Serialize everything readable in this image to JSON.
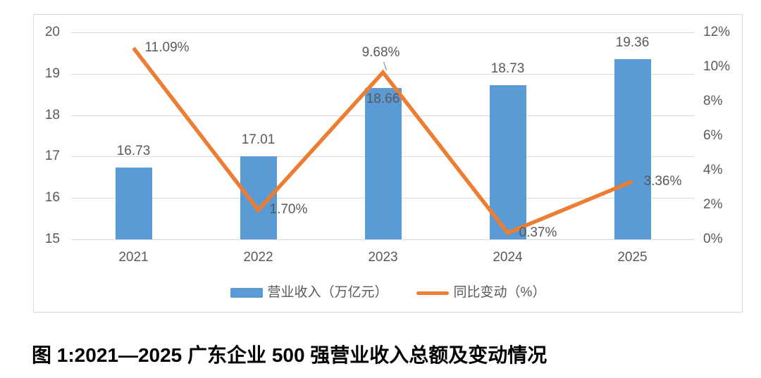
{
  "caption": {
    "text": "图 1:2021—2025 广东企业 500 强营业收入总额及变动情况"
  },
  "colors": {
    "bar": "#5B9BD5",
    "line": "#ED7D31",
    "grid": "#D9D9D9",
    "axis_text": "#595959",
    "label_text": "#595959",
    "leader_line": "#A6A6A6",
    "frame_border": "#D9D9D9",
    "caption_text": "#000000"
  },
  "chart_data": {
    "type": "combo_bar_line",
    "categories": [
      "2021",
      "2022",
      "2023",
      "2024",
      "2025"
    ],
    "series": [
      {
        "name": "营业收入（万亿元）",
        "type": "bar",
        "color": "#5B9BD5",
        "axis": "left",
        "values": [
          16.73,
          17.01,
          18.66,
          18.73,
          19.36
        ],
        "labels": [
          "16.73",
          "17.01",
          "18.66",
          "18.73",
          "19.36"
        ],
        "label_positions": [
          "above",
          "above",
          "inside",
          "above",
          "above"
        ]
      },
      {
        "name": "同比变动（%）",
        "type": "line",
        "color": "#ED7D31",
        "axis": "right",
        "values": [
          11.09,
          1.7,
          9.68,
          0.37,
          3.36
        ],
        "labels": [
          "11.09%",
          "1.70%",
          "9.68%",
          "0.37%",
          "3.36%"
        ],
        "label_positions": [
          "right",
          "right",
          "above-leader",
          "right",
          "right"
        ]
      }
    ],
    "left_axis": {
      "min": 15,
      "max": 20,
      "ticks": [
        "20",
        "19",
        "18",
        "17",
        "16",
        "15"
      ]
    },
    "right_axis": {
      "min": 0,
      "max": 12,
      "ticks": [
        "12%",
        "10%",
        "8%",
        "6%",
        "4%",
        "2%",
        "0%"
      ]
    },
    "grid": "horizontal-primary-axis",
    "legend_position": "bottom"
  }
}
